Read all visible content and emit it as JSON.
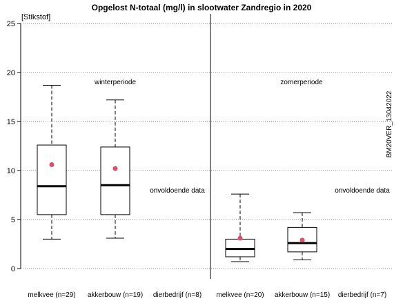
{
  "chart_data": {
    "type": "box",
    "title": "Opgelost N-totaal (mg/l) in slootwater Zandregio in 2020",
    "ylabel": "[Stikstof]",
    "ylim": [
      0,
      25
    ],
    "yticks": [
      0,
      5,
      10,
      15,
      20,
      25
    ],
    "grid": "horizontal dotted",
    "side_label": "BM20VER_13042022",
    "panels": [
      {
        "label": "winterperiode",
        "groups": [
          {
            "label": "melkvee (n=29)",
            "whisker_low": 3.0,
            "q1": 5.5,
            "median": 8.4,
            "q3": 12.6,
            "whisker_high": 18.7,
            "mean": 10.6
          },
          {
            "label": "akkerbouw (n=19)",
            "whisker_low": 3.1,
            "q1": 5.5,
            "median": 8.5,
            "q3": 12.4,
            "whisker_high": 17.2,
            "mean": 10.2
          },
          {
            "label": "dierbedrijf (n=8)",
            "note": "onvoldoende data"
          }
        ]
      },
      {
        "label": "zomerperiode",
        "groups": [
          {
            "label": "melkvee (n=20)",
            "whisker_low": 0.7,
            "q1": 1.2,
            "median": 2.0,
            "q3": 3.0,
            "whisker_high": 7.6,
            "mean": 3.1
          },
          {
            "label": "akkerbouw (n=15)",
            "whisker_low": 0.9,
            "q1": 1.7,
            "median": 2.6,
            "q3": 4.2,
            "whisker_high": 5.7,
            "mean": 2.9
          },
          {
            "label": "dierbedrijf (n=7)",
            "note": "onvoldoende data"
          }
        ]
      }
    ],
    "colors": {
      "mean_point": "#d9506a",
      "box_stroke": "#000000",
      "grid": "#808080"
    }
  }
}
